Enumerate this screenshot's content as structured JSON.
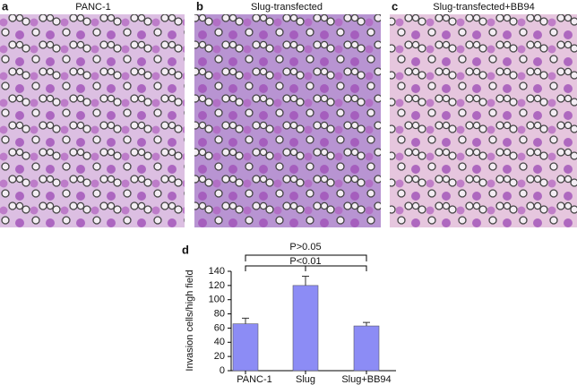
{
  "panels": [
    {
      "label": "a",
      "title": "PANC-1"
    },
    {
      "label": "b",
      "title": "Slug-transfected"
    },
    {
      "label": "c",
      "title": "Slug-transfected+BB94"
    }
  ],
  "chart_data": {
    "type": "bar",
    "label": "d",
    "ylabel": "Invasion cells/high field",
    "categories": [
      "PANC-1",
      "Slug",
      "Slug+BB94"
    ],
    "values": [
      66,
      120,
      63
    ],
    "errors": [
      8,
      13,
      5
    ],
    "color": "#8c8cf5",
    "ylim": [
      0,
      140
    ],
    "yticks": [
      0,
      20,
      40,
      60,
      80,
      100,
      120,
      140
    ],
    "annotations": [
      "P>0.05",
      "P<0.01"
    ]
  }
}
